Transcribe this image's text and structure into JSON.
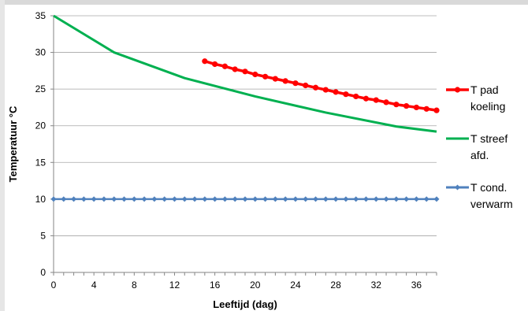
{
  "chart_data": {
    "type": "line",
    "xlabel": "Leeftijd (dag)",
    "ylabel": "Temperatuur °C",
    "xlim": [
      0,
      38
    ],
    "ylim": [
      0,
      35
    ],
    "xticks": [
      0,
      4,
      8,
      12,
      16,
      20,
      24,
      28,
      32,
      36
    ],
    "yticks": [
      0,
      5,
      10,
      15,
      20,
      25,
      30,
      35
    ],
    "grid": "horizontal",
    "legend_position": "right",
    "series": [
      {
        "name": "T pad koeling",
        "legend_lines": [
          "T pad",
          "koeling"
        ],
        "color": "#ff0000",
        "marker": "circle",
        "x": [
          15,
          16,
          17,
          18,
          19,
          20,
          21,
          22,
          23,
          24,
          25,
          26,
          27,
          28,
          29,
          30,
          31,
          32,
          33,
          34,
          35,
          36,
          37,
          38
        ],
        "y": [
          28.8,
          28.4,
          28.1,
          27.7,
          27.4,
          27.0,
          26.7,
          26.4,
          26.1,
          25.8,
          25.5,
          25.2,
          24.9,
          24.6,
          24.3,
          24.0,
          23.7,
          23.5,
          23.2,
          22.9,
          22.7,
          22.5,
          22.3,
          22.1
        ]
      },
      {
        "name": "T streef afd.",
        "legend_lines": [
          "T streef",
          "afd."
        ],
        "color": "#00b050",
        "marker": "none",
        "x": [
          0,
          6,
          13,
          20,
          27,
          34,
          38
        ],
        "y": [
          35,
          30,
          26.5,
          24,
          21.8,
          19.9,
          19.2
        ]
      },
      {
        "name": "T cond. verwarm",
        "legend_lines": [
          "T cond.",
          "verwarm"
        ],
        "color": "#4f81bd",
        "marker": "diamond",
        "x": [
          0,
          1,
          2,
          3,
          4,
          5,
          6,
          7,
          8,
          9,
          10,
          11,
          12,
          13,
          14,
          15,
          16,
          17,
          18,
          19,
          20,
          21,
          22,
          23,
          24,
          25,
          26,
          27,
          28,
          29,
          30,
          31,
          32,
          33,
          34,
          35,
          36,
          37,
          38
        ],
        "y": [
          10,
          10,
          10,
          10,
          10,
          10,
          10,
          10,
          10,
          10,
          10,
          10,
          10,
          10,
          10,
          10,
          10,
          10,
          10,
          10,
          10,
          10,
          10,
          10,
          10,
          10,
          10,
          10,
          10,
          10,
          10,
          10,
          10,
          10,
          10,
          10,
          10,
          10,
          10
        ]
      }
    ]
  }
}
